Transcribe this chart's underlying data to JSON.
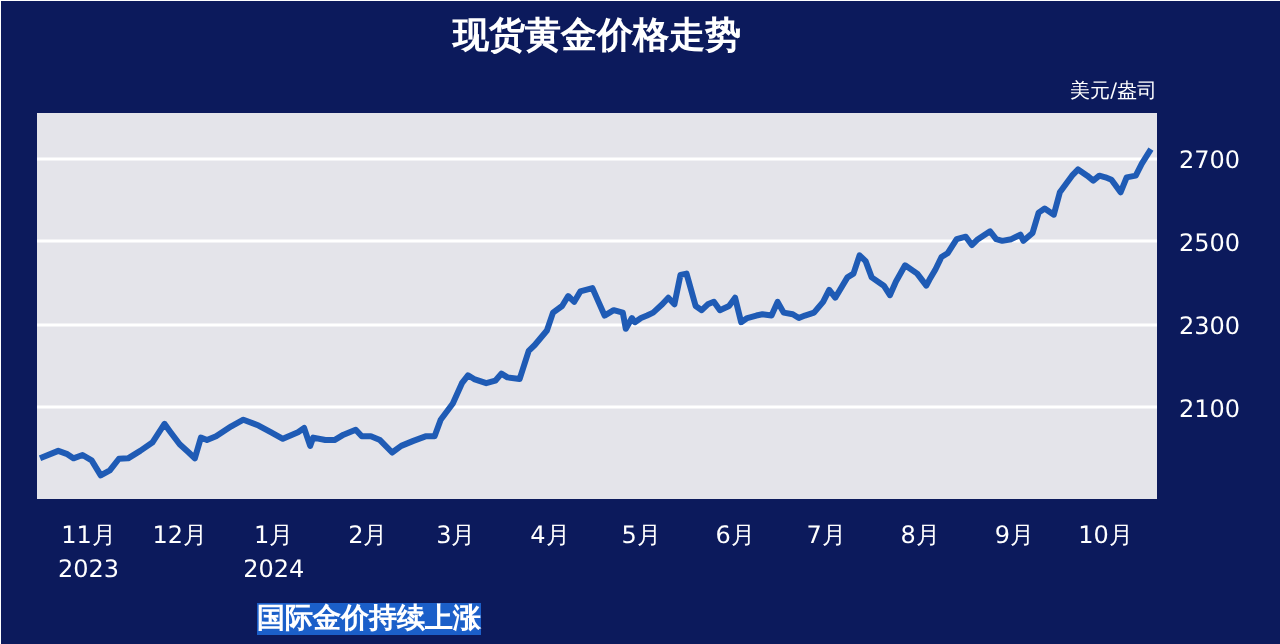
{
  "chart_data": {
    "type": "line",
    "title": "现货黄金价格走势",
    "ylabel": "美元/盎司",
    "annotations": [
      "国际金价持续上涨"
    ],
    "xlim": [
      "2023-10-15",
      "2024-10-18"
    ],
    "xticks": [
      {
        "value": "2023-11-01",
        "label": "11月\n2023"
      },
      {
        "value": "2023-12-01",
        "label": "12月"
      },
      {
        "value": "2024-01-01",
        "label": "1月\n2024"
      },
      {
        "value": "2024-02-01",
        "label": "2月"
      },
      {
        "value": "2024-03-01",
        "label": "3月"
      },
      {
        "value": "2024-04-01",
        "label": "4月"
      },
      {
        "value": "2024-05-01",
        "label": "5月"
      },
      {
        "value": "2024-06-01",
        "label": "6月"
      },
      {
        "value": "2024-07-01",
        "label": "7月"
      },
      {
        "value": "2024-08-01",
        "label": "8月"
      },
      {
        "value": "2024-09-01",
        "label": "9月"
      },
      {
        "value": "2024-10-01",
        "label": "10月"
      }
    ],
    "ylim": [
      1880,
      2810
    ],
    "yticks": [
      2100,
      2300,
      2500,
      2700
    ],
    "grid": "y",
    "x": [
      "2023-10-16",
      "2023-10-22",
      "2023-10-25",
      "2023-10-27",
      "2023-10-30",
      "2023-11-02",
      "2023-11-05",
      "2023-11-08",
      "2023-11-11",
      "2023-11-14",
      "2023-11-18",
      "2023-11-22",
      "2023-11-26",
      "2023-11-28",
      "2023-12-01",
      "2023-12-04",
      "2023-12-06",
      "2023-12-08",
      "2023-12-10",
      "2023-12-13",
      "2023-12-18",
      "2023-12-22",
      "2023-12-27",
      "2023-12-31",
      "2024-01-04",
      "2024-01-09",
      "2024-01-11",
      "2024-01-13",
      "2024-01-14",
      "2024-01-18",
      "2024-01-21",
      "2024-01-24",
      "2024-01-28",
      "2024-01-30",
      "2024-02-02",
      "2024-02-05",
      "2024-02-09",
      "2024-02-12",
      "2024-02-16",
      "2024-02-20",
      "2024-02-23",
      "2024-02-25",
      "2024-02-29",
      "2024-03-03",
      "2024-03-05",
      "2024-03-07",
      "2024-03-11",
      "2024-03-14",
      "2024-03-16",
      "2024-03-18",
      "2024-03-22",
      "2024-03-25",
      "2024-03-27",
      "2024-03-31",
      "2024-04-02",
      "2024-04-05",
      "2024-04-07",
      "2024-04-09",
      "2024-04-11",
      "2024-04-15",
      "2024-04-17",
      "2024-04-19",
      "2024-04-22",
      "2024-04-25",
      "2024-04-26",
      "2024-04-28",
      "2024-04-29",
      "2024-05-01",
      "2024-05-03",
      "2024-05-05",
      "2024-05-08",
      "2024-05-10",
      "2024-05-12",
      "2024-05-14",
      "2024-05-16",
      "2024-05-19",
      "2024-05-21",
      "2024-05-23",
      "2024-05-25",
      "2024-05-27",
      "2024-05-30",
      "2024-06-01",
      "2024-06-03",
      "2024-06-05",
      "2024-06-08",
      "2024-06-10",
      "2024-06-13",
      "2024-06-15",
      "2024-06-17",
      "2024-06-20",
      "2024-06-22",
      "2024-06-24",
      "2024-06-27",
      "2024-06-30",
      "2024-07-02",
      "2024-07-04",
      "2024-07-08",
      "2024-07-10",
      "2024-07-12",
      "2024-07-14",
      "2024-07-16",
      "2024-07-20",
      "2024-07-22",
      "2024-07-24",
      "2024-07-27",
      "2024-07-31",
      "2024-08-03",
      "2024-08-04",
      "2024-08-06",
      "2024-08-08",
      "2024-08-10",
      "2024-08-13",
      "2024-08-16",
      "2024-08-18",
      "2024-08-20",
      "2024-08-24",
      "2024-08-26",
      "2024-08-28",
      "2024-08-31",
      "2024-09-03",
      "2024-09-04",
      "2024-09-07",
      "2024-09-09",
      "2024-09-11",
      "2024-09-14",
      "2024-09-16",
      "2024-09-18",
      "2024-09-20",
      "2024-09-22",
      "2024-09-25",
      "2024-09-27",
      "2024-09-29",
      "2024-10-01",
      "2024-10-03",
      "2024-10-06",
      "2024-10-08",
      "2024-10-11",
      "2024-10-13",
      "2024-10-16"
    ],
    "series": [
      {
        "color": "#1f5bb5",
        "values": [
          1978,
          1996,
          1988,
          1978,
          1986,
          1973,
          1937,
          1949,
          1977,
          1978,
          1996,
          2016,
          2061,
          2041,
          2012,
          1992,
          1978,
          2028,
          2022,
          2031,
          2055,
          2071,
          2057,
          2041,
          2025,
          2041,
          2051,
          2008,
          2028,
          2022,
          2022,
          2035,
          2047,
          2031,
          2031,
          2022,
          1992,
          2008,
          2020,
          2031,
          2031,
          2071,
          2110,
          2159,
          2178,
          2169,
          2159,
          2165,
          2182,
          2173,
          2169,
          2237,
          2251,
          2286,
          2329,
          2345,
          2369,
          2355,
          2380,
          2388,
          2355,
          2322,
          2335,
          2329,
          2290,
          2316,
          2306,
          2316,
          2322,
          2329,
          2349,
          2365,
          2349,
          2420,
          2423,
          2345,
          2335,
          2349,
          2355,
          2335,
          2345,
          2365,
          2306,
          2316,
          2322,
          2325,
          2322,
          2355,
          2329,
          2325,
          2316,
          2322,
          2329,
          2355,
          2384,
          2365,
          2414,
          2423,
          2467,
          2453,
          2414,
          2394,
          2371,
          2404,
          2443,
          2423,
          2394,
          2408,
          2433,
          2463,
          2472,
          2506,
          2512,
          2492,
          2506,
          2525,
          2506,
          2502,
          2506,
          2517,
          2502,
          2521,
          2570,
          2580,
          2565,
          2619,
          2639,
          2659,
          2674,
          2659,
          2647,
          2659,
          2655,
          2649,
          2619,
          2655,
          2659,
          2688,
          2723
        ]
      }
    ]
  }
}
